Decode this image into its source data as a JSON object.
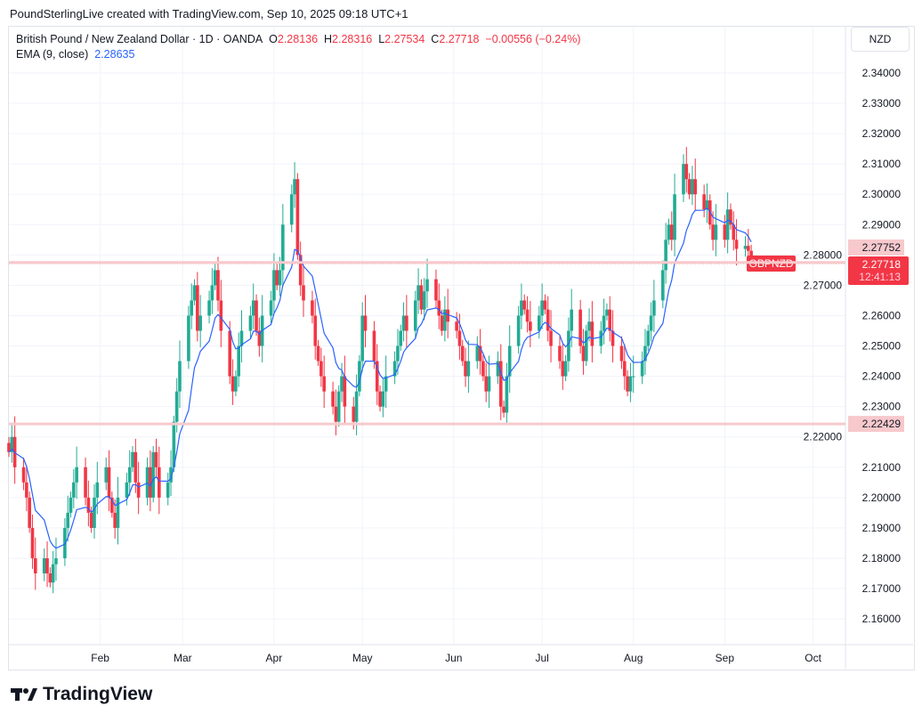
{
  "header": {
    "credit": "PoundSterlingLive created with TradingView.com, Sep 10, 2025 09:18 UTC+1"
  },
  "legend": {
    "symbol": "British Pound / New Zealand Dollar · 1D · OANDA",
    "o_label": "O",
    "o": "2.28136",
    "h_label": "H",
    "h": "2.28316",
    "l_label": "L",
    "l": "2.27534",
    "c_label": "C",
    "c": "2.27718",
    "change": "−0.00556 (−0.24%)",
    "ema_label": "EMA (9, close)",
    "ema_value": "2.28635"
  },
  "currency": "NZD",
  "footer": {
    "logo": "TradingView"
  },
  "colors": {
    "up": "#22ab94",
    "down": "#f23645",
    "ema": "#2962ff",
    "level": "#f7c9cc"
  },
  "chart_data": {
    "type": "candlestick",
    "title": "British Pound / New Zealand Dollar · 1D · OANDA",
    "start_date": "2025-01-01",
    "ylim": [
      2.155,
      2.345
    ],
    "y_ticks": [
      "2.16000",
      "2.17000",
      "2.18000",
      "2.19000",
      "2.20000",
      "2.21000",
      "2.22000",
      "2.23000",
      "2.24000",
      "2.25000",
      "2.26000",
      "2.27000",
      "2.28000",
      "2.29000",
      "2.30000",
      "2.31000",
      "2.32000",
      "2.33000",
      "2.34000"
    ],
    "x_ticks": [
      {
        "label": "Feb",
        "date": "2025-02-01"
      },
      {
        "label": "Mar",
        "date": "2025-03-01"
      },
      {
        "label": "Apr",
        "date": "2025-04-01"
      },
      {
        "label": "May",
        "date": "2025-05-01"
      },
      {
        "label": "Jun",
        "date": "2025-06-01"
      },
      {
        "label": "Jul",
        "date": "2025-07-01"
      },
      {
        "label": "Aug",
        "date": "2025-08-01"
      },
      {
        "label": "Sep",
        "date": "2025-09-01"
      },
      {
        "label": "Oct",
        "date": "2025-10-01"
      }
    ],
    "closes": [
      2.215,
      2.22,
      2.21,
      2.205,
      2.2,
      2.19,
      2.18,
      2.175,
      2.18,
      2.175,
      2.172,
      2.178,
      2.18,
      2.19,
      2.195,
      2.2,
      2.205,
      2.21,
      2.2,
      2.195,
      2.19,
      2.2,
      2.205,
      2.21,
      2.2,
      2.195,
      2.19,
      2.2,
      2.205,
      2.21,
      2.215,
      2.205,
      2.2,
      2.21,
      2.2,
      2.215,
      2.21,
      2.2,
      2.205,
      2.21,
      2.225,
      2.235,
      2.245,
      2.26,
      2.265,
      2.27,
      2.255,
      2.26,
      2.265,
      2.27,
      2.275,
      2.265,
      2.255,
      2.24,
      2.235,
      2.24,
      2.25,
      2.255,
      2.26,
      2.265,
      2.255,
      2.25,
      2.26,
      2.265,
      2.275,
      2.27,
      2.275,
      2.29,
      2.3,
      2.305,
      2.28,
      2.27,
      2.265,
      2.26,
      2.25,
      2.245,
      2.24,
      2.235,
      2.23,
      2.225,
      2.235,
      2.24,
      2.23,
      2.225,
      2.235,
      2.245,
      2.26,
      2.255,
      2.245,
      2.235,
      2.23,
      2.235,
      2.24,
      2.245,
      2.25,
      2.255,
      2.26,
      2.255,
      2.265,
      2.27,
      2.262,
      2.268,
      2.272,
      2.265,
      2.26,
      2.255,
      2.262,
      2.258,
      2.255,
      2.25,
      2.245,
      2.24,
      2.245,
      2.25,
      2.245,
      2.24,
      2.235,
      2.24,
      2.245,
      2.23,
      2.228,
      2.24,
      2.25,
      2.26,
      2.265,
      2.262,
      2.258,
      2.255,
      2.26,
      2.265,
      2.262,
      2.255,
      2.25,
      2.245,
      2.24,
      2.245,
      2.255,
      2.262,
      2.25,
      2.245,
      2.255,
      2.258,
      2.25,
      2.255,
      2.26,
      2.262,
      2.255,
      2.25,
      2.245,
      2.24,
      2.235,
      2.24,
      2.24,
      2.245,
      2.25,
      2.255,
      2.26,
      2.265,
      2.275,
      2.285,
      2.29,
      2.285,
      2.3,
      2.31,
      2.305,
      2.3,
      2.305,
      2.3,
      2.295,
      2.298,
      2.29,
      2.285,
      2.29,
      2.285,
      2.295,
      2.29,
      2.285,
      2.282,
      2.283,
      2.28136,
      2.27718
    ],
    "ema_period": 9,
    "price_labels": [
      {
        "text": "2.27752",
        "value": 2.27752,
        "kind": "level"
      },
      {
        "text": "2.22429",
        "value": 2.22429,
        "kind": "level"
      },
      {
        "text": "2.27718",
        "value": 2.27718,
        "kind": "last",
        "countdown": "12:41:13",
        "symbol": "GBPNZD"
      }
    ]
  }
}
